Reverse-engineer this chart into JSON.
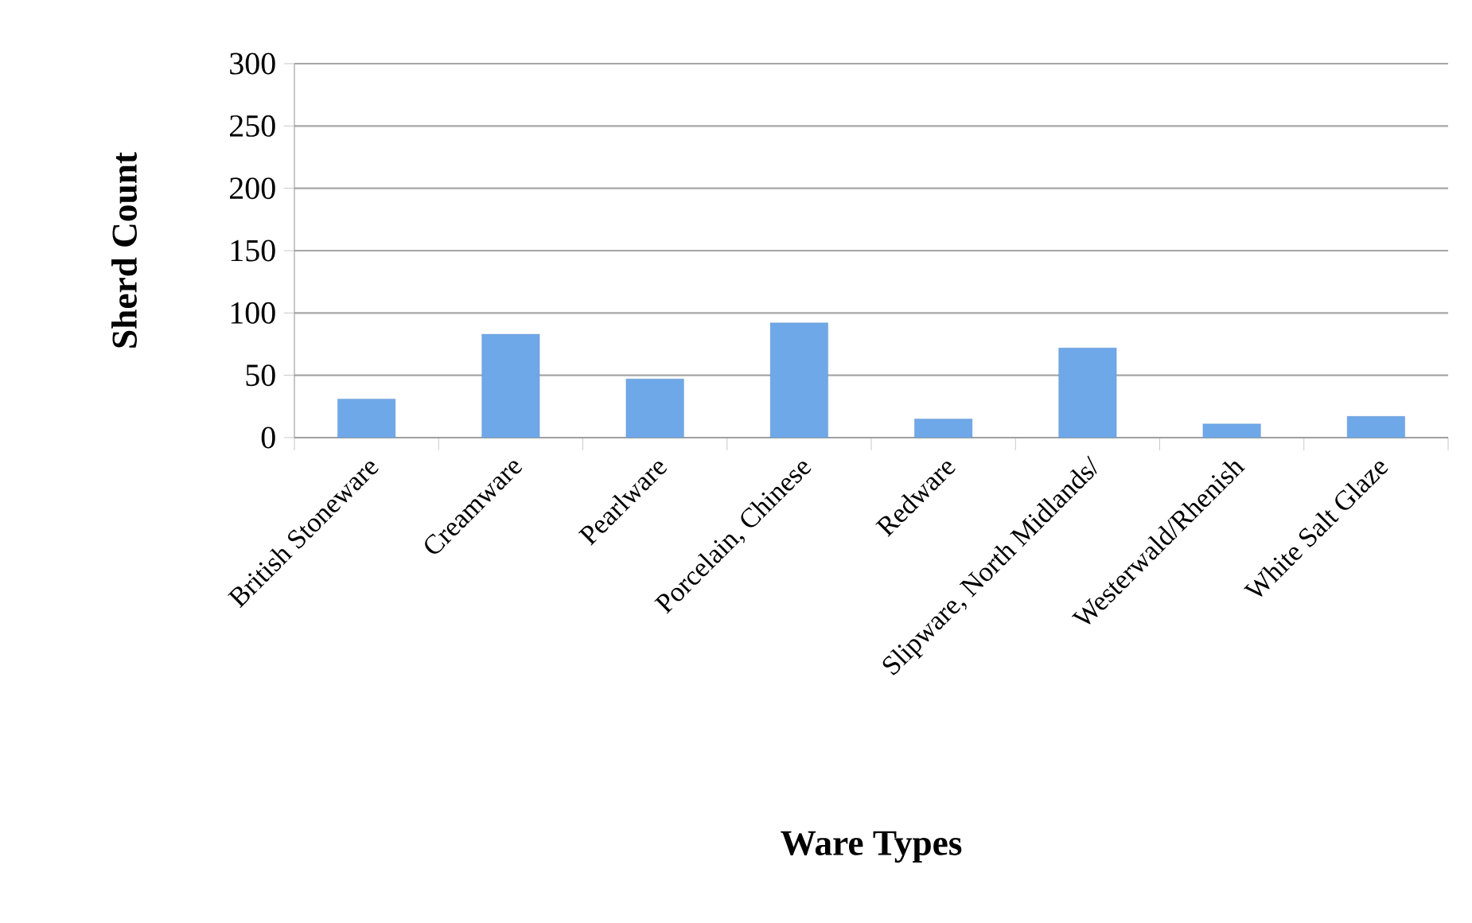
{
  "chart_data": {
    "type": "bar",
    "xlabel": "Ware Types",
    "ylabel": "Sherd Count",
    "categories": [
      "British Stoneware",
      "Creamware",
      "Pearlware",
      "Porcelain, Chinese",
      "Redware",
      "Slipware, North Midlands/",
      "Westerwald/Rhenish",
      "White Salt Glaze"
    ],
    "values": [
      31,
      83,
      47,
      92,
      15,
      72,
      11,
      17
    ],
    "color": "#6fa8e8",
    "ylim": [
      0,
      300
    ],
    "yticks": [
      0,
      50,
      100,
      150,
      200,
      250,
      300
    ],
    "grid": "y"
  }
}
